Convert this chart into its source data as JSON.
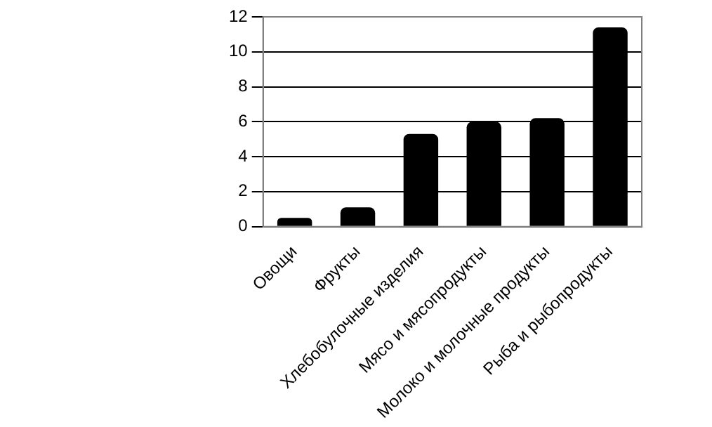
{
  "chart_data": {
    "type": "bar",
    "categories": [
      "Овощи",
      "Фрукты",
      "Хлебобулочные изделия",
      "Мясо и мясопродукты",
      "Молоко и молочные продукты",
      "Рыба и рыбопродукты"
    ],
    "values": [
      0.5,
      1.1,
      5.3,
      6.0,
      6.2,
      11.4
    ],
    "color": "#000000",
    "ylim": [
      0,
      12
    ],
    "yticks": [
      0,
      2,
      4,
      6,
      8,
      10,
      12
    ],
    "grid": "y",
    "legend": false
  }
}
